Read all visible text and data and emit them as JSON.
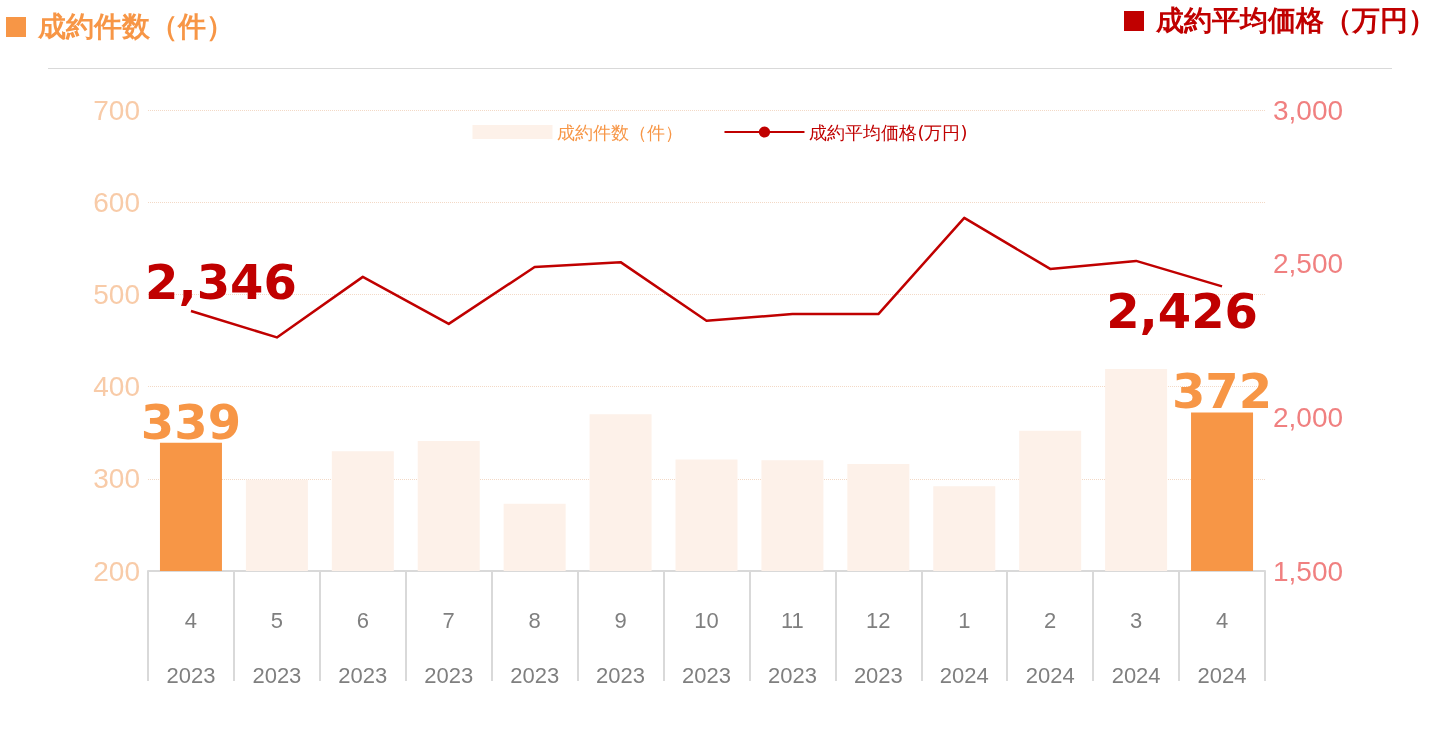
{
  "chart_data": {
    "type": "bar",
    "ylabel": "成約件数（件）",
    "y2label": "成約平均価格（万円）",
    "categories": [
      "4\n2023",
      "5\n2023",
      "6\n2023",
      "7\n2023",
      "8\n2023",
      "9\n2023",
      "10\n2023",
      "11\n2023",
      "12\n2023",
      "1\n2024",
      "2\n2024",
      "3\n2024",
      "4\n2024"
    ],
    "series": [
      {
        "name": "成約件数（件）",
        "color": "#fdf1e9",
        "colors": [
          "#f79646",
          "#fdf1e9",
          "#fdf1e9",
          "#fdf1e9",
          "#fdf1e9",
          "#fdf1e9",
          "#fdf1e9",
          "#fdf1e9",
          "#fdf1e9",
          "#fdf1e9",
          "#fdf1e9",
          "#fdf1e9",
          "#f79646"
        ],
        "values": [
          339,
          299,
          330,
          341,
          273,
          370,
          321,
          320,
          316,
          292,
          352,
          419,
          372
        ],
        "value_labels": [
          "339",
          null,
          null,
          null,
          null,
          null,
          null,
          null,
          null,
          null,
          null,
          null,
          "372"
        ]
      },
      {
        "name": "成約平均価格(万円)",
        "type": "line",
        "axis": "y2",
        "color": "#c00000",
        "values": [
          2346,
          2260,
          2457,
          2304,
          2489,
          2505,
          2314,
          2336,
          2336,
          2649,
          2483,
          2509,
          2426
        ],
        "value_labels": [
          "2,346",
          null,
          null,
          null,
          null,
          null,
          null,
          null,
          null,
          null,
          null,
          null,
          "2,426"
        ]
      }
    ],
    "ylim": [
      200,
      700
    ],
    "yticks": [
      200,
      300,
      400,
      500,
      600,
      700
    ],
    "y2lim": [
      1500,
      3000
    ],
    "y2ticks": [
      {
        "value": 1500,
        "label": "1,500"
      },
      {
        "value": 2000,
        "label": "2,000"
      },
      {
        "value": 2500,
        "label": "2,500"
      },
      {
        "value": 3000,
        "label": "3,000"
      }
    ],
    "grid": "y",
    "legend": "top",
    "marker": "none"
  }
}
